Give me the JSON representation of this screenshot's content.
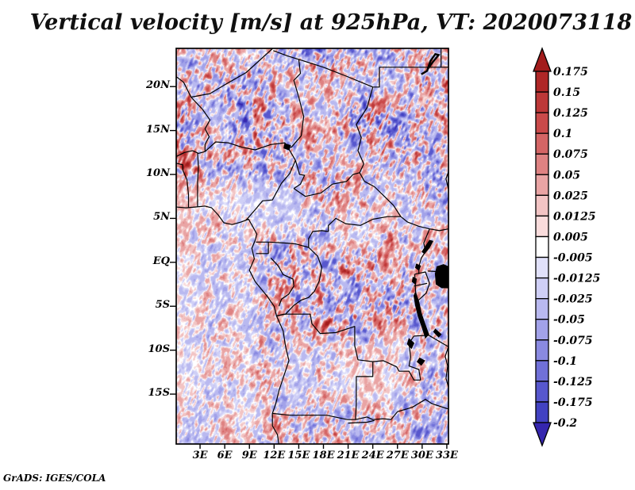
{
  "title": "Vertical velocity [m/s] at 925hPa, VT: 2020073118",
  "credit": "GrADS: IGES/COLA",
  "axes": {
    "lat_ticks": [
      "20N",
      "15N",
      "10N",
      "5N",
      "EQ",
      "5S",
      "10S",
      "15S"
    ],
    "lon_ticks": [
      "3E",
      "6E",
      "9E",
      "12E",
      "15E",
      "18E",
      "21E",
      "24E",
      "27E",
      "30E",
      "33E"
    ]
  },
  "colorbar": {
    "labels": [
      "0.175",
      "0.15",
      "0.125",
      "0.1",
      "0.075",
      "0.05",
      "0.025",
      "0.0125",
      "0.005",
      "-0.005",
      "-0.0125",
      "-0.025",
      "-0.05",
      "-0.075",
      "-0.1",
      "-0.125",
      "-0.175",
      "-0.2"
    ],
    "colors": [
      "#a21c1c",
      "#af2727",
      "#bd3838",
      "#ca4a4a",
      "#d46565",
      "#de8282",
      "#e9a4a4",
      "#f2c4c4",
      "#f9dcdc",
      "#ffffff",
      "#e1e1fa",
      "#cfcff6",
      "#b9b9f0",
      "#a2a2e9",
      "#8a8ae1",
      "#7070d8",
      "#5757cd",
      "#4242c2",
      "#3526ae"
    ]
  },
  "chart_data": {
    "type": "heatmap",
    "title": "Vertical velocity [m/s] at 925hPa, VT: 2020073118",
    "variable": "Vertical velocity",
    "units": "m/s",
    "level": "925hPa",
    "valid_time": "2020073118",
    "x_tick_labels": [
      "3E",
      "6E",
      "9E",
      "12E",
      "15E",
      "18E",
      "21E",
      "24E",
      "27E",
      "30E",
      "33E"
    ],
    "y_tick_labels": [
      "20N",
      "15N",
      "10N",
      "5N",
      "EQ",
      "5S",
      "10S",
      "15S"
    ],
    "approx_lon_range_deg_east": [
      0.1,
      33.2
    ],
    "approx_lat_range_deg_north": [
      -20.7,
      24.3
    ],
    "color_levels_mps": [
      0.175,
      0.15,
      0.125,
      0.1,
      0.075,
      0.05,
      0.025,
      0.0125,
      0.005,
      -0.005,
      -0.0125,
      -0.025,
      -0.05,
      -0.075,
      -0.1,
      -0.125,
      -0.175,
      -0.2
    ],
    "palette_hex": [
      "#a21c1c",
      "#af2727",
      "#bd3838",
      "#ca4a4a",
      "#d46565",
      "#de8282",
      "#e9a4a4",
      "#f2c4c4",
      "#f9dcdc",
      "#ffffff",
      "#e1e1fa",
      "#cfcff6",
      "#b9b9f0",
      "#a2a2e9",
      "#8a8ae1",
      "#7070d8",
      "#5757cd",
      "#4242c2",
      "#3526ae"
    ],
    "legend_position": "right",
    "grid": false,
    "attribution": "GrADS: IGES/COLA",
    "field_note": "fine-grained speckled field of positive (red) and negative (blue) vertical velocity over central Africa with country borders; individual cell values are not legible"
  }
}
